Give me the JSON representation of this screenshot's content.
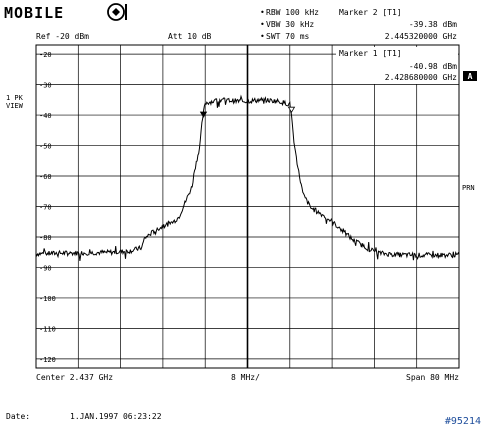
{
  "logo": {
    "text": "MOBILE",
    "emblem_icon": "mobile-emblem-icon"
  },
  "settings": {
    "rbw": "RBW 100 kHz",
    "vbw": "VBW 30 kHz",
    "swt": "SWT 70 ms",
    "ref": "Ref -20 dBm",
    "att": "Att  10 dB"
  },
  "marker2": {
    "label": "Marker 2 [T1]",
    "level": "-39.38 dBm",
    "freq": "2.445320000 GHz"
  },
  "marker1": {
    "label": "Marker 1 [T1]",
    "level": "-40.98 dBm",
    "freq": "2.428680000 GHz"
  },
  "side": {
    "trace_mode": "1 PK",
    "view": "VIEW",
    "trigger_badge": "A",
    "prn": "PRN"
  },
  "footer": {
    "center": "Center 2.437 GHz",
    "div": "8 MHz/",
    "span": "Span 80 MHz",
    "date_label": "Date:",
    "date_value": "1.JAN.1997   06:23:22",
    "image_id": "#95214"
  },
  "chart_data": {
    "type": "line",
    "xlabel": "",
    "ylabel": "",
    "x_unit": "GHz",
    "y_unit": "dBm",
    "xlim": [
      2.397,
      2.477
    ],
    "ylim": [
      -123,
      -17
    ],
    "y_ticks": [
      -20,
      -30,
      -40,
      -50,
      -60,
      -70,
      -80,
      -90,
      -100,
      -110,
      -120
    ],
    "y_tick_labels": [
      "-20",
      "-30",
      "-40",
      "-50",
      "-60",
      "-70",
      "-80",
      "-90",
      "-100",
      "-110",
      "-120"
    ],
    "grid": true,
    "series": [
      {
        "x": [
          2.397,
          2.402,
          2.407,
          2.412,
          2.415,
          2.417,
          2.4175,
          2.419,
          2.421,
          2.423,
          2.424,
          2.4255,
          2.4265,
          2.427,
          2.428,
          2.4285,
          2.429,
          2.432,
          2.436,
          2.44,
          2.443,
          2.444,
          2.445,
          2.4453,
          2.4458,
          2.4465,
          2.4475,
          2.449,
          2.451,
          2.453,
          2.455,
          2.457,
          2.46,
          2.462,
          2.465,
          2.47,
          2.477
        ],
        "y": [
          -85.5,
          -85.3,
          -85.2,
          -85.0,
          -84.5,
          -83.5,
          -80.5,
          -78.5,
          -76.5,
          -75.0,
          -73.5,
          -67.5,
          -63.5,
          -58.0,
          -50.0,
          -41.0,
          -36.0,
          -35.0,
          -35.5,
          -35.0,
          -35.5,
          -36.0,
          -36.5,
          -39.4,
          -50.0,
          -57.0,
          -66.0,
          -70.5,
          -72.5,
          -75.0,
          -78.0,
          -81.0,
          -84.0,
          -85.3,
          -85.8,
          -86.0,
          -85.9
        ]
      }
    ],
    "markers": [
      {
        "name": "1",
        "x": 2.42868,
        "y": -40.98
      },
      {
        "name": "2",
        "x": 2.44532,
        "y": -39.38
      }
    ]
  }
}
